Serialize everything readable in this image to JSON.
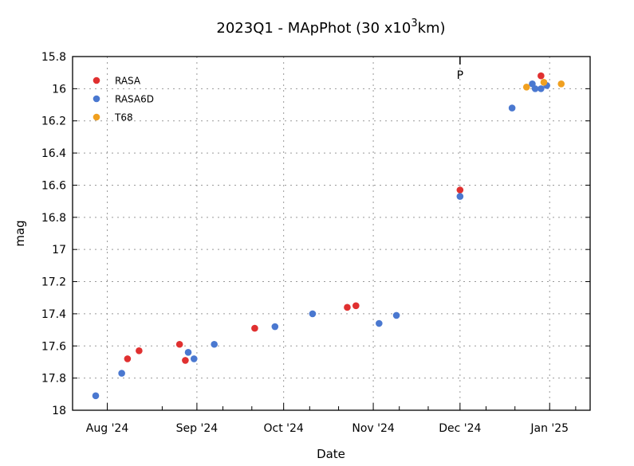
{
  "chart_data": {
    "type": "scatter",
    "title": "2023Q1 - MApPhot (30 x10",
    "title_sup": "3",
    "title_tail": "km)",
    "xlabel": "Date",
    "ylabel": "mag",
    "xlim": [
      "2024-07-20",
      "2025-01-15"
    ],
    "ylim": [
      15.8,
      18
    ],
    "y_inverted": true,
    "yticks": [
      15.8,
      16,
      16.2,
      16.4,
      16.6,
      16.8,
      17,
      17.2,
      17.4,
      17.6,
      17.8,
      18
    ],
    "ytick_labels": [
      "15.8",
      "16",
      "16.2",
      "16.4",
      "16.6",
      "16.8",
      "17",
      "17.2",
      "17.4",
      "17.6",
      "17.8",
      "18"
    ],
    "xticks": [
      "2024-08-01",
      "2024-09-01",
      "2024-10-01",
      "2024-11-01",
      "2024-12-01",
      "2025-01-01"
    ],
    "xtick_labels": [
      "Aug '24",
      "Sep '24",
      "Oct '24",
      "Nov '24",
      "Dec '24",
      "Jan '25"
    ],
    "grid": true,
    "legend_position": "top-left",
    "annotations": [
      {
        "text": "P",
        "x": "2024-12-01"
      }
    ],
    "series": [
      {
        "name": "RASA",
        "color": "#e03030",
        "points": [
          [
            "2024-08-08",
            17.68
          ],
          [
            "2024-08-12",
            17.63
          ],
          [
            "2024-08-26",
            17.59
          ],
          [
            "2024-08-28",
            17.69
          ],
          [
            "2024-09-21",
            17.49
          ],
          [
            "2024-10-23",
            17.36
          ],
          [
            "2024-10-26",
            17.35
          ],
          [
            "2024-12-01",
            16.63
          ],
          [
            "2024-12-29",
            15.92
          ]
        ]
      },
      {
        "name": "RASA6D",
        "color": "#4a78d0",
        "points": [
          [
            "2024-07-28",
            17.91
          ],
          [
            "2024-08-06",
            17.77
          ],
          [
            "2024-08-29",
            17.64
          ],
          [
            "2024-08-31",
            17.68
          ],
          [
            "2024-09-07",
            17.59
          ],
          [
            "2024-09-28",
            17.48
          ],
          [
            "2024-10-11",
            17.4
          ],
          [
            "2024-11-03",
            17.46
          ],
          [
            "2024-11-09",
            17.41
          ],
          [
            "2024-12-01",
            16.67
          ],
          [
            "2024-12-19",
            16.12
          ],
          [
            "2024-12-26",
            15.97
          ],
          [
            "2024-12-27",
            16.0
          ],
          [
            "2024-12-29",
            16.0
          ],
          [
            "2024-12-31",
            15.98
          ]
        ]
      },
      {
        "name": "T68",
        "color": "#f0a020",
        "points": [
          [
            "2024-12-24",
            15.99
          ],
          [
            "2024-12-30",
            15.96
          ],
          [
            "2025-01-05",
            15.97
          ]
        ]
      }
    ]
  }
}
